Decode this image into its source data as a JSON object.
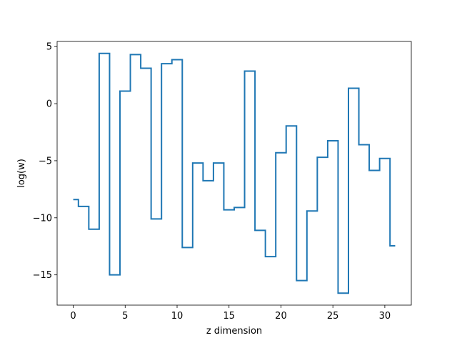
{
  "chart_data": {
    "type": "line",
    "drawstyle": "steps-mid",
    "title": "",
    "xlabel": "z dimension",
    "ylabel": "log(w)",
    "xlim": [
      -1.55,
      32.55
    ],
    "ylim": [
      -17.65,
      5.45
    ],
    "grid": false,
    "legend": "none",
    "xticks": [
      0,
      5,
      10,
      15,
      20,
      25,
      30
    ],
    "yticks": [
      -15,
      -10,
      -5,
      0,
      5
    ],
    "series": [
      {
        "color": "#1f77b4",
        "x": [
          0,
          1,
          2,
          3,
          4,
          5,
          6,
          7,
          8,
          9,
          10,
          11,
          12,
          13,
          14,
          15,
          16,
          17,
          18,
          19,
          20,
          21,
          22,
          23,
          24,
          25,
          26,
          27,
          28,
          29,
          30,
          31
        ],
        "y": [
          -8.4,
          -9.0,
          -11.0,
          4.4,
          -15.0,
          1.1,
          4.3,
          3.1,
          -10.1,
          3.5,
          3.85,
          -12.6,
          -5.2,
          -6.75,
          -5.2,
          -9.3,
          -9.1,
          2.85,
          -11.1,
          -13.4,
          -4.3,
          -1.95,
          -15.5,
          -9.4,
          -4.7,
          -3.25,
          -16.6,
          1.35,
          -3.6,
          -5.85,
          -4.8,
          -12.45
        ]
      }
    ]
  }
}
